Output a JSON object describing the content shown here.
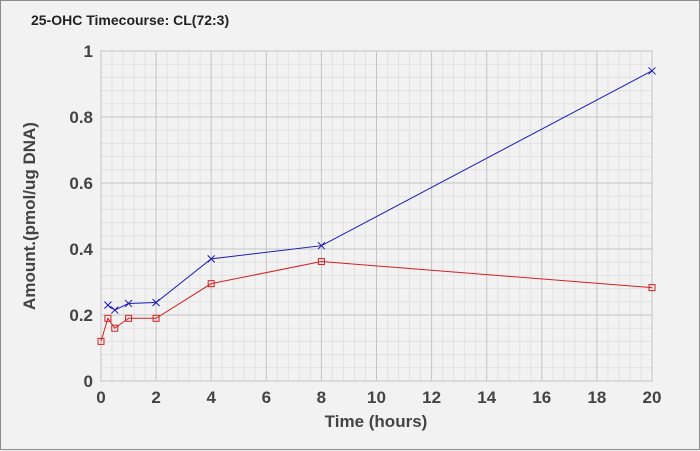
{
  "chart_data": {
    "type": "line",
    "title": "25-OHC Timecourse: CL(72:3)",
    "xlabel": "Time (hours)",
    "ylabel": "Amount.(pmol/ug DNA)",
    "xlim": [
      0,
      20
    ],
    "ylim": [
      0,
      1
    ],
    "x_ticks": [
      0,
      2,
      4,
      6,
      8,
      10,
      12,
      14,
      16,
      18,
      20
    ],
    "y_ticks": [
      0,
      0.2,
      0.4,
      0.6,
      0.8,
      1
    ],
    "y_tick_labels": [
      "0",
      "0.2",
      "0.4",
      "0.6",
      "0.8",
      "1"
    ],
    "grid": true,
    "series": [
      {
        "marker": "x",
        "color": "#1a1ab8",
        "x": [
          0.25,
          0.5,
          1,
          2,
          4,
          8,
          20
        ],
        "y": [
          0.23,
          0.215,
          0.235,
          0.238,
          0.37,
          0.41,
          0.94
        ]
      },
      {
        "marker": "square",
        "color": "#d42020",
        "x": [
          0,
          0.25,
          0.5,
          1,
          2,
          4,
          8,
          20
        ],
        "y": [
          0.12,
          0.19,
          0.16,
          0.19,
          0.19,
          0.295,
          0.362,
          0.283
        ]
      }
    ]
  }
}
